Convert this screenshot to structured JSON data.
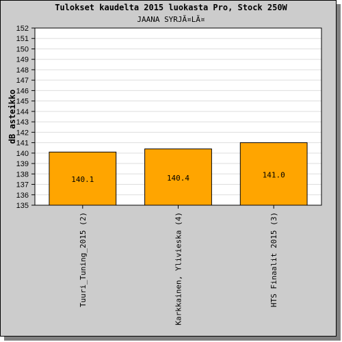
{
  "chart_data": {
    "type": "bar",
    "title": "Tulokset kaudelta 2015 luokasta Pro, Stock 250W",
    "subtitle": "JAANA SYRJÃ¤LÃ¤",
    "ylabel": "dB asteikko",
    "xlabel": "",
    "ylim": [
      135,
      152
    ],
    "yticks": [
      135,
      136,
      137,
      138,
      139,
      140,
      141,
      142,
      143,
      144,
      145,
      146,
      147,
      148,
      149,
      150,
      151,
      152
    ],
    "categories": [
      "Tuuri_Tuning_2015 (2)",
      "Karkkainen, Ylivieska (4)",
      "HTS Finaalit 2015 (3)"
    ],
    "values": [
      140.1,
      140.4,
      141.0
    ],
    "data_labels": [
      "140.1",
      "140.4",
      "141.0"
    ],
    "grid": true,
    "legend": "none",
    "colors": {
      "bar": "#ffa500",
      "background": "#cccccc",
      "plot_area": "#ffffff",
      "grid": "#dddddd"
    }
  }
}
